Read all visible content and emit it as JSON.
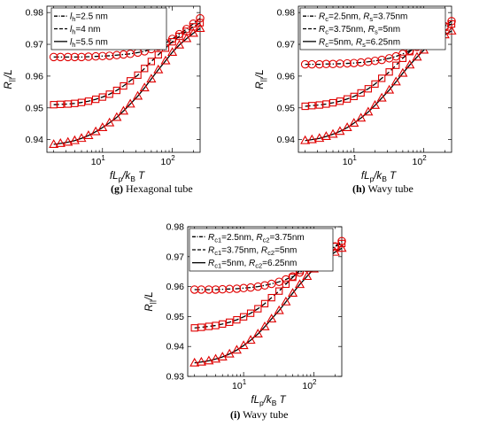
{
  "chart_data": [
    {
      "id": "g",
      "type": "line",
      "caption_letter": "(g)",
      "caption_text": " Hexagonal tube",
      "ylabel_main": "R",
      "ylabel_sub": "||",
      "ylabel_tail": "/L",
      "xlabel_main": "fL",
      "xlabel_sub1": "p",
      "xlabel_mid": "/k",
      "xlabel_sub2": "B",
      "xlabel_tail": "T",
      "xscale": "log",
      "xlim": [
        1.6,
        250
      ],
      "ylim": [
        0.936,
        0.982
      ],
      "yticks": [
        "0.94",
        "0.95",
        "0.96",
        "0.97",
        "0.98"
      ],
      "ytick_values": [
        0.94,
        0.95,
        0.96,
        0.97,
        0.98
      ],
      "xticks": [
        {
          "base": "10",
          "exp": "1",
          "value": 10
        },
        {
          "base": "10",
          "exp": "2",
          "value": 100
        }
      ],
      "legend_position": "top-left",
      "legend": [
        {
          "style": "dashdot",
          "parts": [
            [
              "l",
              "italic"
            ],
            [
              "h",
              "sub"
            ],
            [
              "=2.5 nm",
              "normal"
            ]
          ]
        },
        {
          "style": "dashed",
          "parts": [
            [
              "l",
              "italic"
            ],
            [
              "h",
              "sub"
            ],
            [
              "=4 nm",
              "normal"
            ]
          ]
        },
        {
          "style": "solid",
          "parts": [
            [
              "l",
              "italic"
            ],
            [
              "h",
              "sub"
            ],
            [
              "=5.5 nm",
              "normal"
            ]
          ]
        }
      ],
      "series": [
        {
          "marker": "circle",
          "line": "dashdot",
          "x": [
            2,
            2.5,
            3.2,
            4,
            5,
            6.3,
            8,
            10,
            12.6,
            16,
            20,
            25,
            32,
            40,
            50,
            63,
            80,
            100,
            126,
            160,
            200,
            250
          ],
          "y": [
            0.966,
            0.966,
            0.966,
            0.966,
            0.966,
            0.9661,
            0.9662,
            0.9663,
            0.9664,
            0.9666,
            0.9668,
            0.967,
            0.9674,
            0.9678,
            0.9685,
            0.9693,
            0.9704,
            0.9717,
            0.9732,
            0.9748,
            0.9765,
            0.9782
          ]
        },
        {
          "marker": "square",
          "line": "dashed",
          "x": [
            2,
            2.5,
            3.2,
            4,
            5,
            6.3,
            8,
            10,
            12.6,
            16,
            20,
            25,
            32,
            40,
            50,
            63,
            80,
            100,
            126,
            160,
            200,
            250
          ],
          "y": [
            0.951,
            0.9511,
            0.9512,
            0.9514,
            0.9517,
            0.9521,
            0.9527,
            0.9534,
            0.9543,
            0.9555,
            0.9569,
            0.9585,
            0.9603,
            0.9624,
            0.9646,
            0.9667,
            0.9688,
            0.9708,
            0.9725,
            0.9741,
            0.9755,
            0.9768
          ]
        },
        {
          "marker": "triangle",
          "line": "solid",
          "x": [
            2,
            2.5,
            3.2,
            4,
            5,
            6.3,
            8,
            10,
            12.6,
            16,
            20,
            25,
            32,
            40,
            50,
            63,
            80,
            100,
            126,
            160,
            200,
            250
          ],
          "y": [
            0.9385,
            0.9388,
            0.9392,
            0.9397,
            0.9404,
            0.9413,
            0.9425,
            0.9438,
            0.9453,
            0.947,
            0.949,
            0.9512,
            0.9537,
            0.9563,
            0.9591,
            0.962,
            0.9648,
            0.9675,
            0.9698,
            0.9718,
            0.9735,
            0.975
          ]
        }
      ]
    },
    {
      "id": "h",
      "type": "line",
      "caption_letter": "(h)",
      "caption_text": " Wavy tube",
      "ylabel_main": "R",
      "ylabel_sub": "||",
      "ylabel_tail": "/L",
      "xlabel_main": "fL",
      "xlabel_sub1": "p",
      "xlabel_mid": "/k",
      "xlabel_sub2": "B",
      "xlabel_tail": "T",
      "xscale": "log",
      "xlim": [
        1.6,
        250
      ],
      "ylim": [
        0.936,
        0.982
      ],
      "yticks": [
        "0.94",
        "0.95",
        "0.96",
        "0.97",
        "0.98"
      ],
      "ytick_values": [
        0.94,
        0.95,
        0.96,
        0.97,
        0.98
      ],
      "xticks": [
        {
          "base": "10",
          "exp": "1",
          "value": 10
        },
        {
          "base": "10",
          "exp": "2",
          "value": 100
        }
      ],
      "legend_position": "top-left",
      "legend": [
        {
          "style": "dashdot",
          "parts": [
            [
              "R",
              "italic"
            ],
            [
              "c",
              "sub"
            ],
            [
              "=2.5nm, ",
              "normal"
            ],
            [
              "R",
              "italic"
            ],
            [
              "s",
              "sub"
            ],
            [
              "=3.75nm",
              "normal"
            ]
          ]
        },
        {
          "style": "dashed",
          "parts": [
            [
              "R",
              "italic"
            ],
            [
              "c",
              "sub"
            ],
            [
              "=3.75nm, ",
              "normal"
            ],
            [
              "R",
              "italic"
            ],
            [
              "s",
              "sub"
            ],
            [
              "=5nm",
              "normal"
            ]
          ]
        },
        {
          "style": "solid",
          "parts": [
            [
              "R",
              "italic"
            ],
            [
              "c",
              "sub"
            ],
            [
              "=5nm, ",
              "normal"
            ],
            [
              "R",
              "italic"
            ],
            [
              "s",
              "sub"
            ],
            [
              "=6.25nm",
              "normal"
            ]
          ]
        }
      ],
      "series": [
        {
          "marker": "circle",
          "line": "dashdot",
          "x": [
            2,
            2.5,
            3.2,
            4,
            5,
            6.3,
            8,
            10,
            12.6,
            16,
            20,
            25,
            32,
            40,
            50,
            63,
            80,
            100,
            126,
            160,
            200,
            250
          ],
          "y": [
            0.9637,
            0.9637,
            0.9637,
            0.9638,
            0.9638,
            0.9639,
            0.964,
            0.9641,
            0.9643,
            0.9645,
            0.9648,
            0.9651,
            0.9656,
            0.9662,
            0.967,
            0.968,
            0.9692,
            0.9707,
            0.9723,
            0.974,
            0.9757,
            0.9773
          ]
        },
        {
          "marker": "square",
          "line": "dashed",
          "x": [
            2,
            2.5,
            3.2,
            4,
            5,
            6.3,
            8,
            10,
            12.6,
            16,
            20,
            25,
            32,
            40,
            50,
            63,
            80,
            100,
            126,
            160,
            200,
            250
          ],
          "y": [
            0.9505,
            0.9507,
            0.9509,
            0.9512,
            0.9516,
            0.9521,
            0.9528,
            0.9536,
            0.9547,
            0.956,
            0.9575,
            0.9593,
            0.9613,
            0.9634,
            0.9656,
            0.9677,
            0.9697,
            0.9715,
            0.973,
            0.9743,
            0.9754,
            0.9764
          ]
        },
        {
          "marker": "triangle",
          "line": "solid",
          "x": [
            2,
            2.5,
            3.2,
            4,
            5,
            6.3,
            8,
            10,
            12.6,
            16,
            20,
            25,
            32,
            40,
            50,
            63,
            80,
            100,
            126,
            160,
            200,
            250
          ],
          "y": [
            0.9397,
            0.94,
            0.9404,
            0.941,
            0.9417,
            0.9426,
            0.9438,
            0.9452,
            0.9468,
            0.9487,
            0.9508,
            0.9531,
            0.9556,
            0.9582,
            0.9609,
            0.9635,
            0.966,
            0.9682,
            0.9701,
            0.9717,
            0.973,
            0.9742
          ]
        }
      ]
    },
    {
      "id": "i",
      "type": "line",
      "caption_letter": "(i)",
      "caption_text": " Wavy tube",
      "ylabel_main": "R",
      "ylabel_sub": "||",
      "ylabel_tail": "/L",
      "xlabel_main": "fL",
      "xlabel_sub1": "p",
      "xlabel_mid": "/k",
      "xlabel_sub2": "B",
      "xlabel_tail": "T",
      "xscale": "log",
      "xlim": [
        1.6,
        250
      ],
      "ylim": [
        0.93,
        0.98
      ],
      "yticks": [
        "0.93",
        "0.94",
        "0.95",
        "0.96",
        "0.97",
        "0.98"
      ],
      "ytick_values": [
        0.93,
        0.94,
        0.95,
        0.96,
        0.97,
        0.98
      ],
      "xticks": [
        {
          "base": "10",
          "exp": "1",
          "value": 10
        },
        {
          "base": "10",
          "exp": "2",
          "value": 100
        }
      ],
      "legend_position": "top-left",
      "legend": [
        {
          "style": "dashdot",
          "parts": [
            [
              "R",
              "italic"
            ],
            [
              "c1",
              "sub"
            ],
            [
              "=2.5nm, ",
              "normal"
            ],
            [
              "R",
              "italic"
            ],
            [
              "c2",
              "sub"
            ],
            [
              "=3.75nm",
              "normal"
            ]
          ]
        },
        {
          "style": "dashed",
          "parts": [
            [
              "R",
              "italic"
            ],
            [
              "c1",
              "sub"
            ],
            [
              "=3.75nm, ",
              "normal"
            ],
            [
              "R",
              "italic"
            ],
            [
              "c2",
              "sub"
            ],
            [
              "=5nm",
              "normal"
            ]
          ]
        },
        {
          "style": "solid",
          "parts": [
            [
              "R",
              "italic"
            ],
            [
              "c1",
              "sub"
            ],
            [
              "=5nm, ",
              "normal"
            ],
            [
              "R",
              "italic"
            ],
            [
              "c2",
              "sub"
            ],
            [
              "=6.25nm",
              "normal"
            ]
          ]
        }
      ],
      "series": [
        {
          "marker": "circle",
          "line": "dashdot",
          "x": [
            2,
            2.5,
            3.2,
            4,
            5,
            6.3,
            8,
            10,
            12.6,
            16,
            20,
            25,
            32,
            40,
            50,
            63,
            80,
            100,
            126,
            160,
            200,
            250
          ],
          "y": [
            0.959,
            0.959,
            0.959,
            0.959,
            0.9591,
            0.9592,
            0.9593,
            0.9595,
            0.9597,
            0.96,
            0.9604,
            0.9609,
            0.9616,
            0.9624,
            0.9634,
            0.9647,
            0.9662,
            0.9679,
            0.9697,
            0.9716,
            0.9734,
            0.9752
          ]
        },
        {
          "marker": "square",
          "line": "dashed",
          "x": [
            2,
            2.5,
            3.2,
            4,
            5,
            6.3,
            8,
            10,
            12.6,
            16,
            20,
            25,
            32,
            40,
            50,
            63,
            80,
            100,
            126,
            160,
            200,
            250
          ],
          "y": [
            0.9462,
            0.9464,
            0.9467,
            0.947,
            0.9475,
            0.9481,
            0.9489,
            0.9499,
            0.9511,
            0.9526,
            0.9543,
            0.9563,
            0.9585,
            0.9608,
            0.9631,
            0.9654,
            0.9675,
            0.9694,
            0.971,
            0.9723,
            0.9734,
            0.9744
          ]
        },
        {
          "marker": "triangle",
          "line": "solid",
          "x": [
            2,
            2.5,
            3.2,
            4,
            5,
            6.3,
            8,
            10,
            12.6,
            16,
            20,
            25,
            32,
            40,
            50,
            63,
            80,
            100,
            126,
            160,
            200,
            250
          ],
          "y": [
            0.9345,
            0.9348,
            0.9352,
            0.9358,
            0.9365,
            0.9375,
            0.9388,
            0.9403,
            0.9421,
            0.9442,
            0.9466,
            0.9492,
            0.952,
            0.9549,
            0.9578,
            0.9607,
            0.9634,
            0.9659,
            0.9681,
            0.9699,
            0.9715,
            0.9728
          ]
        }
      ]
    }
  ]
}
